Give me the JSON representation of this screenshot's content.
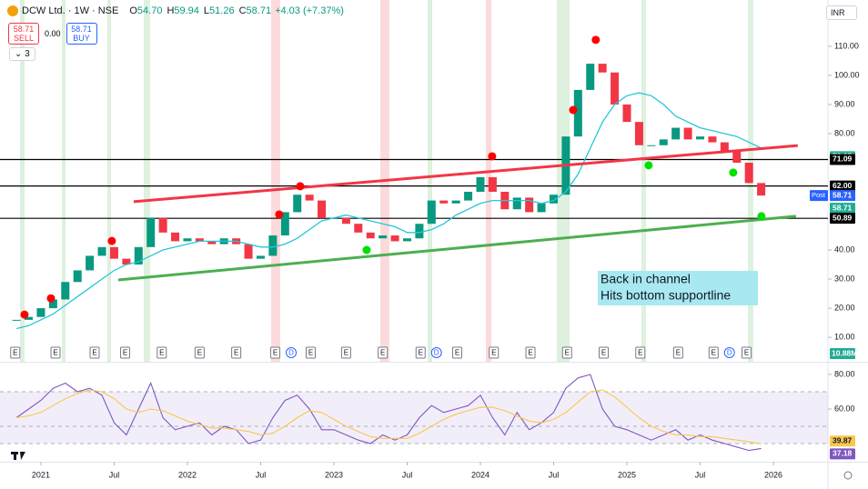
{
  "header": {
    "symbol": "DCW Ltd. · 1W · NSE",
    "ohlc": [
      {
        "key": "O",
        "value": "54.70"
      },
      {
        "key": "H",
        "value": "59.94"
      },
      {
        "key": "L",
        "value": "51.26"
      },
      {
        "key": "C",
        "value": "58.71"
      }
    ],
    "change": "+4.03 (+7.37%)",
    "sell_price": "58.71",
    "sell": "SELL",
    "spread": "0.00",
    "buy_price": "58.71",
    "buy": "BUY",
    "indicators": "3",
    "currency": "INR"
  },
  "chart_data": {
    "type": "line",
    "x": [
      -2,
      -1,
      0,
      1,
      2,
      3,
      4,
      5,
      6,
      7,
      8,
      9,
      10,
      11,
      12,
      13,
      14,
      15,
      16,
      17,
      18,
      19,
      20,
      21,
      22,
      23,
      24,
      25,
      26,
      27,
      28,
      29,
      30,
      31,
      32,
      33,
      34,
      35,
      36,
      37,
      38,
      39,
      40,
      41,
      42,
      43,
      44,
      45,
      46,
      47,
      48,
      49,
      50,
      51,
      52,
      53,
      54,
      55,
      56,
      57,
      58,
      59
    ],
    "xlim": [
      -3.35,
      64.47
    ],
    "xticks": [
      {
        "value": 0,
        "label": "2021"
      },
      {
        "value": 6,
        "label": "Jul"
      },
      {
        "value": 12,
        "label": "2022"
      },
      {
        "value": 18,
        "label": "Jul"
      },
      {
        "value": 24,
        "label": "2023"
      },
      {
        "value": 30,
        "label": "Jul"
      },
      {
        "value": 36,
        "label": "2024"
      },
      {
        "value": 42,
        "label": "Jul"
      },
      {
        "value": 48,
        "label": "2025"
      },
      {
        "value": 54,
        "label": "Jul"
      },
      {
        "value": 60,
        "label": "2026"
      }
    ],
    "series": [
      {
        "color": "#089981",
        "down_color": "#f23645",
        "values": [
          16,
          17,
          20,
          23,
          29,
          33,
          38,
          41,
          37,
          35,
          41,
          51,
          46,
          43,
          44,
          43,
          42,
          44,
          42,
          37,
          38,
          45,
          53,
          59,
          57,
          51,
          51,
          49,
          46,
          44,
          45,
          43,
          44,
          49,
          57,
          56,
          57,
          60,
          65,
          60,
          54,
          58,
          53,
          56,
          59,
          79,
          95,
          104,
          101,
          90,
          84,
          76,
          76,
          78,
          82,
          78,
          79,
          77,
          74,
          70,
          63,
          58.71
        ]
      },
      {
        "color": "#26c6da",
        "values": [
          13,
          14,
          16,
          18,
          21,
          24,
          27,
          30,
          33,
          35,
          36,
          38,
          40,
          41,
          42,
          43,
          43,
          43,
          43,
          42,
          41,
          41,
          42,
          44,
          47,
          50,
          51,
          52,
          51,
          50,
          49,
          48,
          46,
          46,
          47,
          49,
          52,
          54,
          56,
          57,
          57,
          57,
          57,
          56,
          57,
          60,
          66,
          75,
          84,
          90,
          93,
          94,
          93,
          90,
          86,
          84,
          82,
          81,
          80,
          79,
          77,
          75
        ]
      }
    ],
    "ylim": [
      1.6,
      125.9
    ],
    "yticks": [
      {
        "value": 10,
        "label": "10.00"
      },
      {
        "value": 20,
        "label": "20.00"
      },
      {
        "value": 30,
        "label": "30.00"
      },
      {
        "value": 40,
        "label": "40.00"
      },
      {
        "value": 80,
        "label": "80.00"
      },
      {
        "value": 90,
        "label": "90.00"
      },
      {
        "value": 100,
        "label": "100.00"
      },
      {
        "value": 110,
        "label": "110.00"
      }
    ],
    "hlines": [
      71.09,
      62,
      50.89
    ],
    "trendlines": [
      {
        "color": "#f23645",
        "x": [
          7.6,
          62
        ],
        "y": [
          56.6,
          75.9
        ]
      },
      {
        "color": "#4caf50",
        "x": [
          6.33,
          61.85
        ],
        "y": [
          29.7,
          51.6
        ]
      }
    ],
    "signals": [
      {
        "color": "#ff0000",
        "x": [
          -1.34,
          0.82,
          5.81,
          19.52,
          21.24,
          36.96,
          43.6,
          45.45
        ],
        "y": [
          17.8,
          23.4,
          43.1,
          52.2,
          61.9,
          72.2,
          88.1,
          112.2
        ]
      },
      {
        "color": "#00e000",
        "x": [
          26.68,
          49.78,
          56.71,
          59.02
        ],
        "y": [
          40,
          69.1,
          66.6,
          51.6
        ]
      }
    ],
    "price_labels": [
      {
        "value": 72.05,
        "color": "#22ab94"
      },
      {
        "value": 71.09,
        "color": "#000000"
      },
      {
        "value": 62,
        "label": "62.00",
        "color": "#000000"
      },
      {
        "value": 58.71,
        "tag": "Post",
        "color": "#2962ff"
      },
      {
        "value": 58.71,
        "countdown": "23:43:37",
        "color": "#22ab94"
      },
      {
        "value": 50.89,
        "color": "#000000"
      }
    ],
    "volume_label": {
      "value": 10880000,
      "label": "10.88M",
      "color": "#22ab94"
    },
    "events": {
      "x": [
        -2.1,
        1.2,
        4.4,
        6.9,
        9.9,
        13,
        16,
        19.2,
        20.5,
        22.1,
        25,
        28,
        31.1,
        32.4,
        34.1,
        37.1,
        40.1,
        43.1,
        46.1,
        49.1,
        52.2,
        55.1,
        56.4,
        57.8
      ],
      "labels": [
        "E",
        "E",
        "E",
        "E",
        "E",
        "E",
        "E",
        "E",
        "D",
        "E",
        "E",
        "E",
        "E",
        "D",
        "E",
        "E",
        "E",
        "E",
        "E",
        "E",
        "E",
        "E",
        "D",
        "E"
      ]
    },
    "annotation": [
      "Back in channel",
      "Hits bottom supportline"
    ],
    "rsi": {
      "ylim": [
        29.5,
        86.3
      ],
      "yticks": [
        {
          "value": 60,
          "label": "60.00"
        },
        {
          "value": 80,
          "label": "80.00"
        }
      ],
      "bands": [
        70,
        50,
        40
      ],
      "series": [
        {
          "color": "#7e57c2",
          "values": [
            55,
            60,
            65,
            72,
            75,
            70,
            72,
            68,
            52,
            45,
            60,
            75,
            55,
            48,
            50,
            52,
            45,
            50,
            48,
            40,
            42,
            55,
            65,
            68,
            60,
            48,
            48,
            45,
            42,
            40,
            45,
            42,
            45,
            55,
            62,
            58,
            60,
            62,
            68,
            55,
            45,
            58,
            48,
            52,
            58,
            72,
            78,
            80,
            60,
            50,
            48,
            45,
            42,
            45,
            48,
            42,
            45,
            42,
            40,
            38,
            36,
            37.18
          ]
        },
        {
          "color": "#f9c74f",
          "values": [
            55,
            56,
            58,
            62,
            66,
            69,
            71,
            70,
            66,
            60,
            58,
            60,
            59,
            56,
            53,
            51,
            49,
            49,
            48,
            47,
            45,
            46,
            50,
            55,
            59,
            58,
            54,
            50,
            47,
            44,
            43,
            43,
            43,
            46,
            50,
            54,
            57,
            59,
            61,
            61,
            59,
            56,
            53,
            52,
            54,
            58,
            64,
            70,
            71,
            67,
            61,
            55,
            50,
            47,
            45,
            45,
            44,
            44,
            43,
            42,
            41,
            39.87
          ]
        }
      ]
    }
  }
}
